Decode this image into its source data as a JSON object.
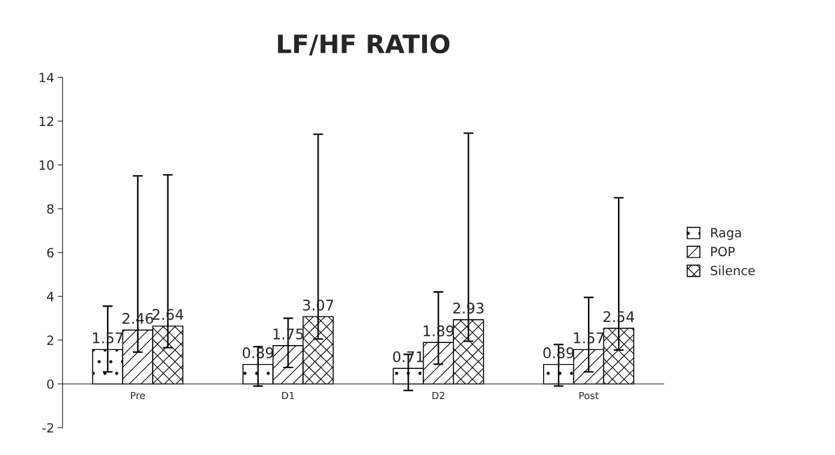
{
  "chart_data": {
    "type": "bar",
    "title": "LF/HF RATIO",
    "categories": [
      "Pre",
      "D1",
      "D2",
      "Post"
    ],
    "series": [
      {
        "name": "Raga",
        "color": "#ffffff",
        "values": [
          1.57,
          0.89,
          0.71,
          0.89
        ],
        "errors": [
          [
            0.55,
            3.55
          ],
          [
            -0.1,
            1.7
          ],
          [
            -0.3,
            1.35
          ],
          [
            -0.1,
            1.8
          ]
        ]
      },
      {
        "name": "POP",
        "color": "#ffffff",
        "values": [
          2.46,
          1.75,
          1.89,
          1.57
        ],
        "errors": [
          [
            1.45,
            9.5
          ],
          [
            0.75,
            3.0
          ],
          [
            0.9,
            4.2
          ],
          [
            0.55,
            3.95
          ]
        ]
      },
      {
        "name": "Silence",
        "color": "#ffffff",
        "values": [
          2.64,
          3.07,
          2.93,
          2.54
        ],
        "errors": [
          [
            1.65,
            9.55
          ],
          [
            2.05,
            11.4
          ],
          [
            1.95,
            11.45
          ],
          [
            1.55,
            8.5
          ]
        ]
      }
    ],
    "ylim": [
      -2,
      14
    ],
    "yticks": [
      -2,
      0,
      2,
      4,
      6,
      8,
      10,
      12,
      14
    ],
    "data_labels": true,
    "legend": "right",
    "grid": false
  }
}
